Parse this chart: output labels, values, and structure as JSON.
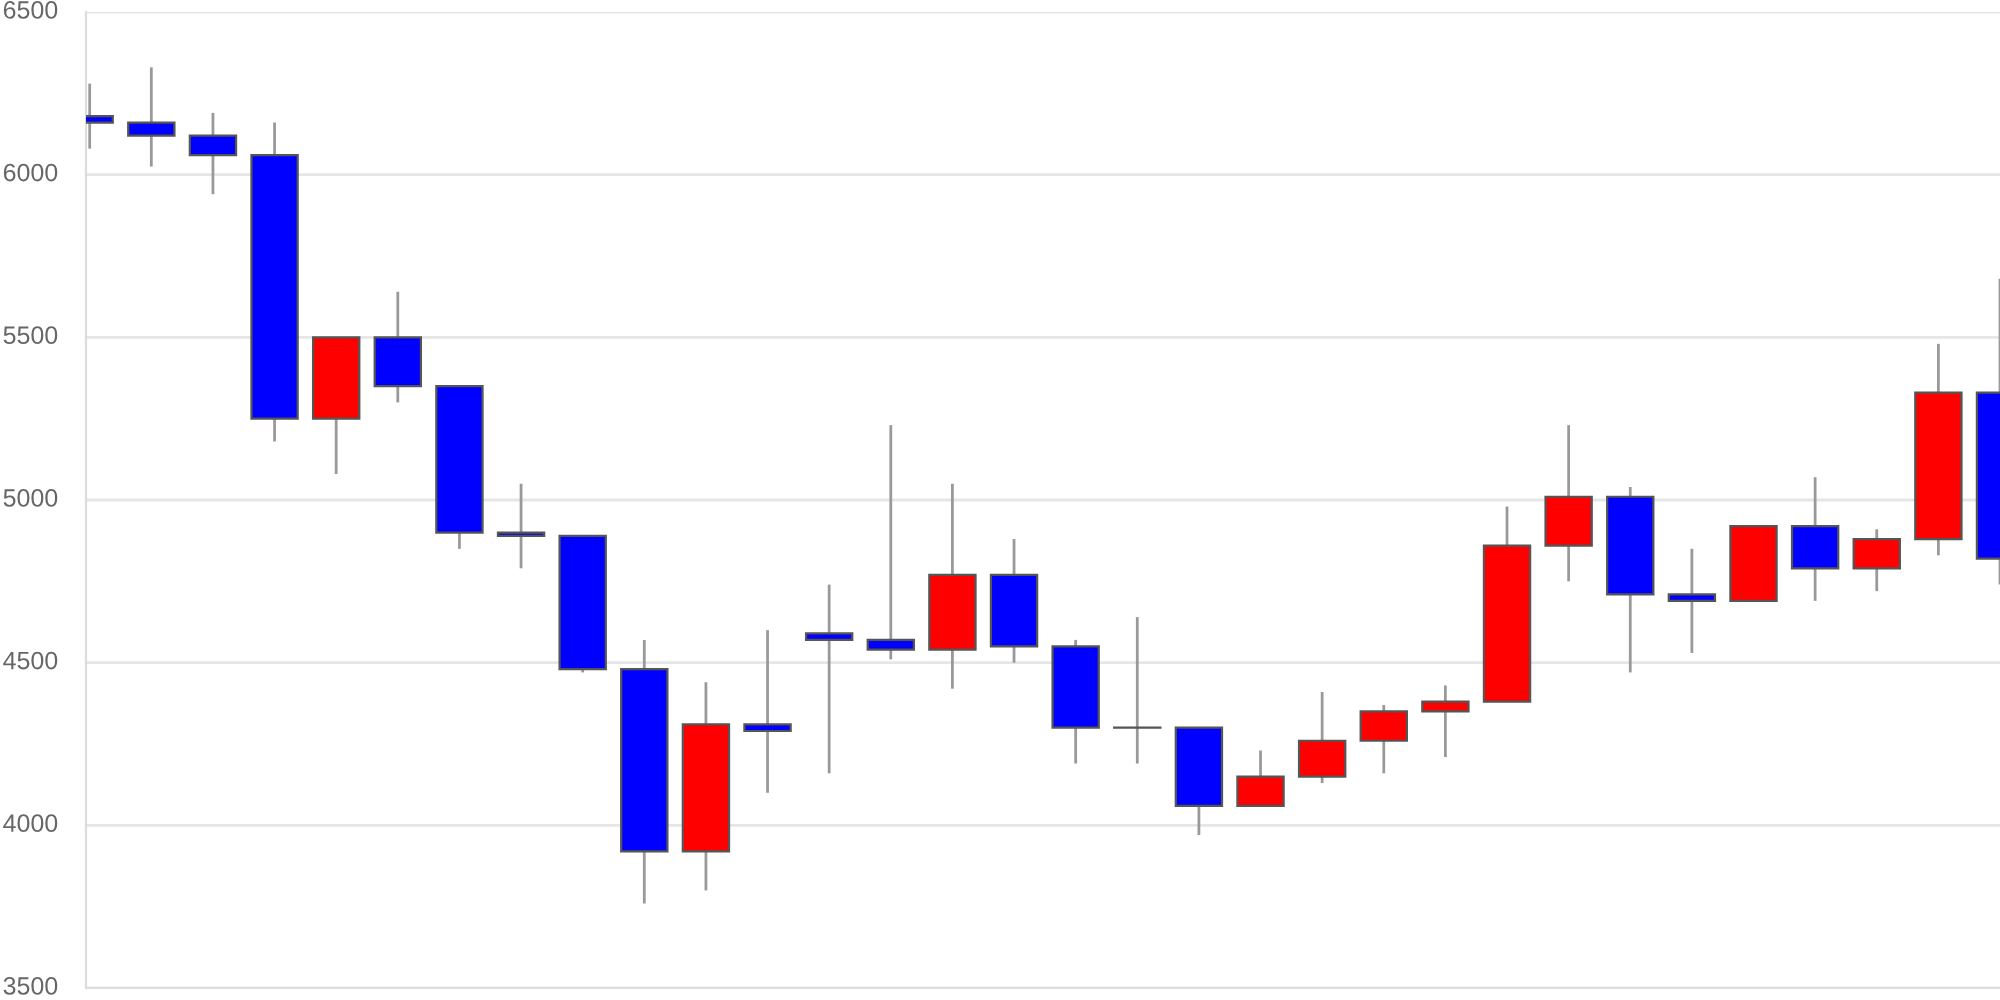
{
  "chart_data": {
    "type": "candlestick",
    "categories": [
      null,
      null,
      null,
      null,
      null,
      null,
      null,
      null,
      null,
      null,
      null,
      null,
      null,
      null,
      null,
      null,
      null,
      null,
      null,
      null,
      null,
      null,
      null,
      null,
      null,
      null,
      null,
      null,
      null,
      null,
      null,
      null
    ],
    "ohlc": [
      [
        6180,
        6280,
        6080,
        6160
      ],
      [
        6160,
        6330,
        6025,
        6120
      ],
      [
        6120,
        6190,
        5940,
        6060
      ],
      [
        6060,
        6160,
        5180,
        5250
      ],
      [
        5250,
        5500,
        5080,
        5500
      ],
      [
        5500,
        5640,
        5300,
        5350
      ],
      [
        5350,
        5350,
        4850,
        4900
      ],
      [
        4900,
        5050,
        4790,
        4890
      ],
      [
        4890,
        4890,
        4470,
        4480
      ],
      [
        4480,
        4570,
        3760,
        3920
      ],
      [
        3920,
        4440,
        3800,
        4310
      ],
      [
        4310,
        4600,
        4100,
        4290
      ],
      [
        4590,
        4740,
        4160,
        4570
      ],
      [
        4570,
        5230,
        4510,
        4540
      ],
      [
        4540,
        5050,
        4420,
        4770
      ],
      [
        4770,
        4880,
        4500,
        4550
      ],
      [
        4550,
        4570,
        4190,
        4300
      ],
      [
        4300,
        4640,
        4190,
        4300
      ],
      [
        4300,
        4300,
        3970,
        4060
      ],
      [
        4060,
        4230,
        4060,
        4150
      ],
      [
        4150,
        4410,
        4130,
        4260
      ],
      [
        4260,
        4370,
        4160,
        4350
      ],
      [
        4350,
        4430,
        4210,
        4380
      ],
      [
        4380,
        4980,
        4380,
        4860
      ],
      [
        4860,
        5230,
        4750,
        5010
      ],
      [
        5010,
        5040,
        4470,
        4710
      ],
      [
        4710,
        4850,
        4530,
        4690
      ],
      [
        4690,
        4920,
        4690,
        4920
      ],
      [
        4920,
        5070,
        4690,
        4790
      ],
      [
        4790,
        4910,
        4720,
        4880
      ],
      [
        4880,
        5480,
        4830,
        5330
      ],
      [
        5330,
        5680,
        4740,
        4820
      ]
    ],
    "colors": [
      "#0000ff",
      "#0000ff",
      "#0000ff",
      "#0000ff",
      "#ff0000",
      "#0000ff",
      "#0000ff",
      "#0000ff",
      "#0000ff",
      "#0000ff",
      "#ff0000",
      "#0000ff",
      "#0000ff",
      "#0000ff",
      "#ff0000",
      "#0000ff",
      "#0000ff",
      "#555555",
      "#0000ff",
      "#ff0000",
      "#ff0000",
      "#ff0000",
      "#ff0000",
      "#ff0000",
      "#ff0000",
      "#0000ff",
      "#0000ff",
      "#ff0000",
      "#0000ff",
      "#ff0000",
      "#ff0000",
      "#0000ff"
    ],
    "ylim": [
      3500,
      6500
    ],
    "yticks": [
      3500,
      4000,
      4500,
      5000,
      5500,
      6000,
      6500
    ],
    "grid": "y",
    "tick_labels": "y"
  }
}
